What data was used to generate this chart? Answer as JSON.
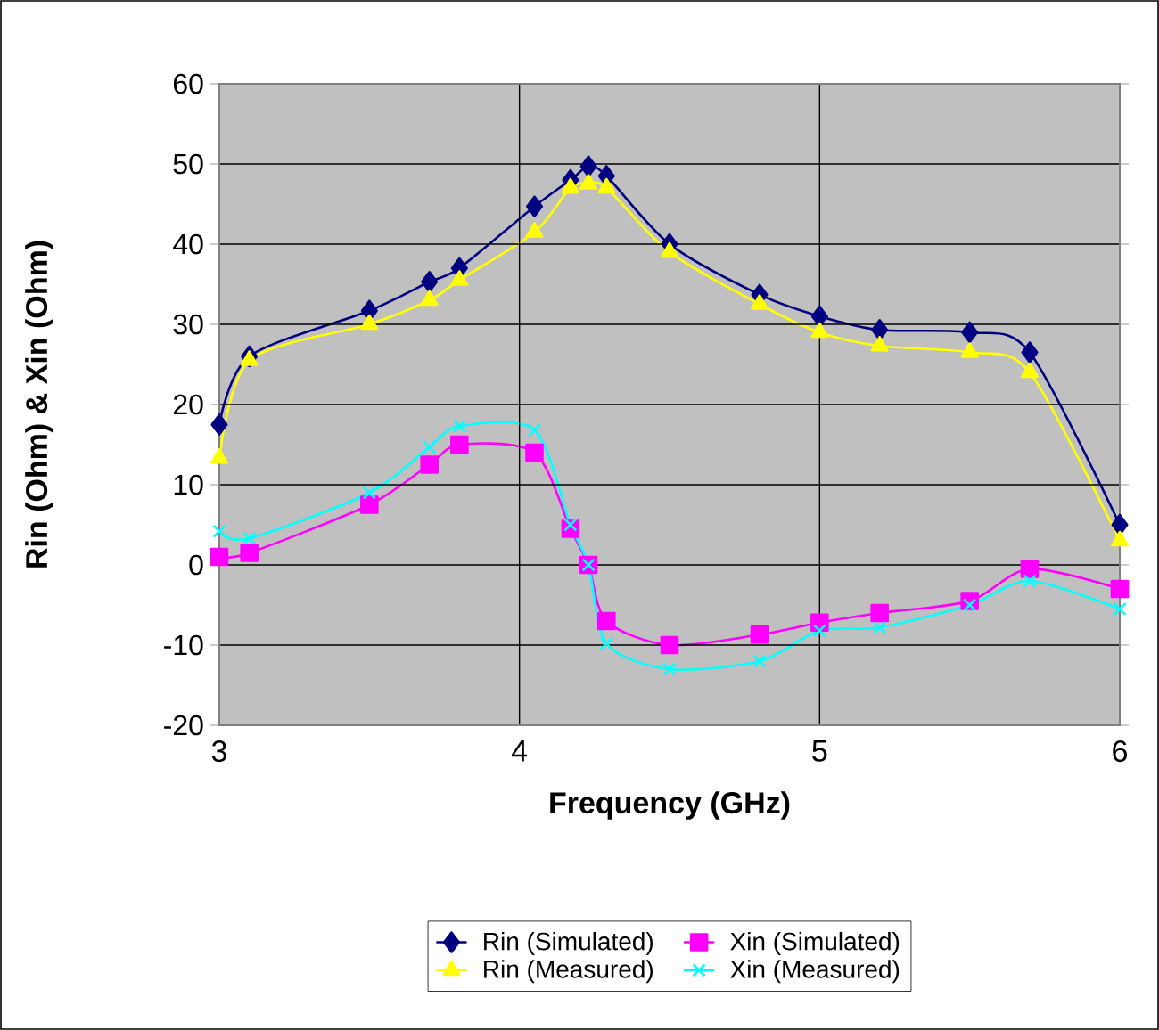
{
  "chart_data": {
    "type": "line",
    "xlabel": "Frequency (GHz)",
    "ylabel": "Rin (Ohm) & Xin (Ohm)",
    "x": [
      3.0,
      3.1,
      3.5,
      3.7,
      3.8,
      4.05,
      4.17,
      4.23,
      4.29,
      4.5,
      4.8,
      5.0,
      5.2,
      5.5,
      5.7,
      6.0
    ],
    "series": [
      {
        "name": "Rin (Simulated)",
        "color": "#000080",
        "marker": "diamond",
        "values": [
          17.5,
          26,
          31.7,
          35.3,
          37,
          44.7,
          48,
          49.7,
          48.5,
          40,
          33.7,
          31,
          29.3,
          29,
          26.5,
          5
        ]
      },
      {
        "name": "Xin (Simulated)",
        "color": "#ff00ff",
        "marker": "square",
        "values": [
          1,
          1.5,
          7.5,
          12.5,
          15,
          14,
          4.5,
          0,
          -7,
          -10,
          -8.7,
          -7.2,
          -6,
          -4.5,
          -0.5,
          -3
        ]
      },
      {
        "name": "Rin (Measured)",
        "color": "#ffff00",
        "marker": "triangle",
        "values": [
          13.3,
          25.5,
          30,
          33,
          35.5,
          41.5,
          47,
          47.5,
          47,
          39,
          32.5,
          29,
          27.3,
          26.5,
          24,
          3
        ]
      },
      {
        "name": "Xin (Measured)",
        "color": "#00ffff",
        "marker": "cross",
        "values": [
          4.2,
          3.3,
          9,
          14.7,
          17.3,
          16.8,
          5,
          0,
          -9.8,
          -13,
          -12,
          -8.2,
          -7.8,
          -5,
          -2,
          -5.5
        ]
      }
    ],
    "xlim": [
      3,
      6
    ],
    "xticks": [
      3,
      4,
      5,
      6
    ],
    "ylim": [
      -20,
      60
    ],
    "yticks": [
      -20,
      -10,
      0,
      10,
      20,
      30,
      40,
      50,
      60
    ],
    "grid": true,
    "legend": "bottom",
    "line_style": "solid"
  }
}
